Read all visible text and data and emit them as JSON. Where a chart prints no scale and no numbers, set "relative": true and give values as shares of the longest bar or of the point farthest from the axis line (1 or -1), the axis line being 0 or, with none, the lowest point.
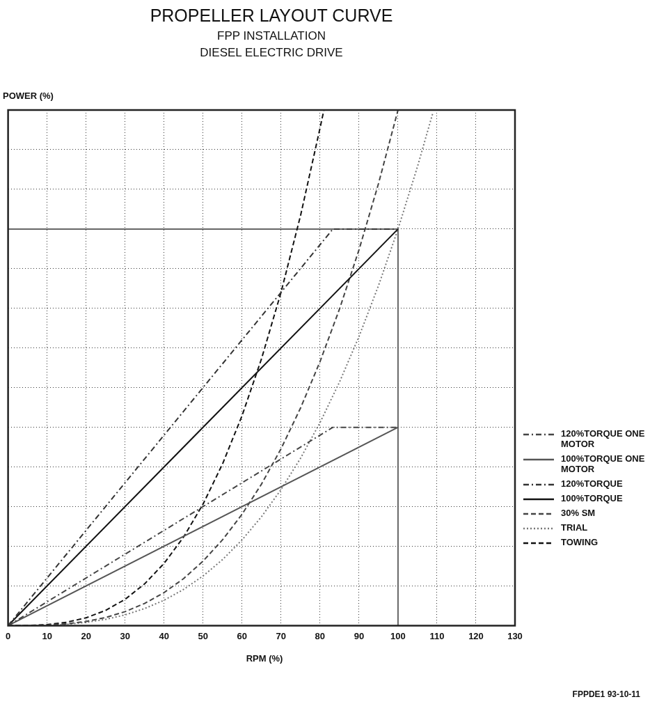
{
  "chart_data": {
    "type": "line",
    "title": "PROPELLER LAYOUT CURVE",
    "subtitle": "FPP INSTALLATION\nDIESEL ELECTRIC DRIVE",
    "xlabel": "RPM (%)",
    "ylabel": "POWER (%)",
    "relative": true,
    "xlim": [
      0,
      130
    ],
    "xticks": [
      0,
      10,
      20,
      30,
      40,
      50,
      60,
      70,
      80,
      90,
      100,
      110,
      120,
      130
    ],
    "grid": true,
    "legend": "bottom right",
    "tick_labels": "x",
    "marker": "none",
    "annotations": [
      "FPPDE1 93-10-11"
    ],
    "series": [
      {
        "name": "120%TORQUE ONE MOTOR",
        "color": "#444444",
        "line_style": "dashdot",
        "x": [
          0,
          83.3,
          100
        ],
        "values": [
          0,
          0.3846,
          0.3846
        ]
      },
      {
        "name": "100%TORQUE ONE MOTOR",
        "color": "#555555",
        "line_style": "solid",
        "x": [
          0,
          100
        ],
        "values": [
          0,
          0.3846
        ]
      },
      {
        "name": "120%TORQUE",
        "color": "#333333",
        "line_style": "dashdot",
        "x": [
          0,
          83.3,
          100
        ],
        "values": [
          0,
          0.7692,
          0.7692
        ]
      },
      {
        "name": "100%TORQUE",
        "color": "#111111",
        "line_style": "solid",
        "x": [
          0,
          100
        ],
        "values": [
          0,
          0.7692
        ]
      },
      {
        "name": "30% SM",
        "color": "#444444",
        "line_style": "dashed",
        "x": [
          0,
          5,
          10,
          15,
          20,
          25,
          30,
          35,
          40,
          45,
          50,
          55,
          60,
          65,
          70,
          75,
          80,
          85,
          90,
          95,
          100
        ],
        "values": [
          0,
          0.0001,
          0.001,
          0.0034,
          0.008,
          0.0156,
          0.027,
          0.0429,
          0.064,
          0.0911,
          0.125,
          0.1664,
          0.216,
          0.2746,
          0.343,
          0.4219,
          0.512,
          0.6141,
          0.729,
          0.8574,
          1
        ]
      },
      {
        "name": "TRIAL",
        "color": "#777777",
        "line_style": "dotted",
        "x": [
          0,
          5,
          10,
          15,
          20,
          25,
          30,
          35,
          40,
          45,
          50,
          55,
          60,
          65,
          70,
          75,
          80,
          85,
          90,
          95,
          100,
          105,
          109
        ],
        "values": [
          0,
          0.0001,
          0.0008,
          0.0026,
          0.0062,
          0.012,
          0.0208,
          0.033,
          0.0492,
          0.0701,
          0.0962,
          0.128,
          0.1662,
          0.2113,
          0.2638,
          0.3245,
          0.3938,
          0.4724,
          0.5608,
          0.6595,
          0.7692,
          0.8904,
          0.9961
        ]
      },
      {
        "name": "TOWING",
        "color": "#111111",
        "line_style": "dashed",
        "x": [
          0,
          5,
          10,
          15,
          20,
          25,
          30,
          35,
          40,
          45,
          50,
          55,
          60,
          65,
          70,
          75,
          80,
          81
        ],
        "values": [
          0,
          0.0002,
          0.0019,
          0.0064,
          0.0151,
          0.0294,
          0.0509,
          0.0808,
          0.1206,
          0.1717,
          0.2356,
          0.3136,
          0.4071,
          0.5176,
          0.6464,
          0.7951,
          0.9649,
          1
        ]
      },
      {
        "color": "#666666",
        "line_style": "solid",
        "x": [
          0,
          100,
          100
        ],
        "values": [
          0.7692,
          0.7692,
          0
        ]
      }
    ]
  }
}
